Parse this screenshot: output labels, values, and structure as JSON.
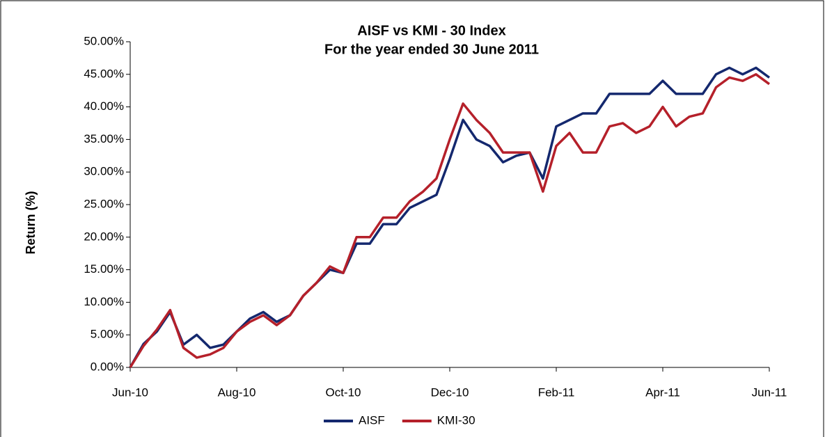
{
  "chart_data": {
    "type": "line",
    "title": "AISF vs KMI - 30 Index",
    "subtitle": "For the year ended 30 June 2011",
    "y_label": "Return (%)",
    "x": [
      0,
      0.25,
      0.5,
      0.75,
      1,
      1.25,
      1.5,
      1.75,
      2,
      2.25,
      2.5,
      2.75,
      3,
      3.25,
      3.5,
      3.75,
      4,
      4.25,
      4.5,
      4.75,
      5,
      5.25,
      5.5,
      5.75,
      6,
      6.25,
      6.5,
      6.75,
      7,
      7.25,
      7.5,
      7.75,
      8,
      8.25,
      8.5,
      8.75,
      9,
      9.25,
      9.5,
      9.75,
      10,
      10.25,
      10.5,
      10.75,
      11,
      11.25,
      11.5,
      11.75,
      12
    ],
    "series": [
      {
        "name": "AISF",
        "color": "#14286e",
        "values": [
          0,
          3.6,
          5.5,
          8.5,
          3.5,
          5,
          3,
          3.5,
          5.5,
          7.5,
          8.5,
          7,
          8,
          11,
          13,
          15,
          14.5,
          19,
          19,
          22,
          22,
          24.5,
          25.5,
          26.5,
          32,
          38,
          35,
          34,
          31.5,
          32.5,
          33,
          29,
          37,
          38,
          39,
          39,
          42,
          42,
          42,
          42,
          44,
          42,
          42,
          42,
          45,
          46,
          45,
          46,
          44.5
        ]
      },
      {
        "name": "KMI-30",
        "color": "#b5202a",
        "values": [
          0,
          3.3,
          5.8,
          8.8,
          3,
          1.5,
          2,
          3,
          5.5,
          7,
          8,
          6.5,
          8,
          11,
          13,
          15.5,
          14.5,
          20,
          20,
          23,
          23,
          25.5,
          27,
          29,
          35,
          40.5,
          38,
          36,
          33,
          33,
          33,
          27,
          34,
          36,
          33,
          33,
          37,
          37.5,
          36,
          37,
          40,
          37,
          38.5,
          39,
          43,
          44.5,
          44,
          45,
          43.5
        ]
      }
    ],
    "xlim": [
      0,
      12
    ],
    "xticks": [
      {
        "value": 0,
        "label": "Jun-10"
      },
      {
        "value": 2,
        "label": "Aug-10"
      },
      {
        "value": 4,
        "label": "Oct-10"
      },
      {
        "value": 6,
        "label": "Dec-10"
      },
      {
        "value": 8,
        "label": "Feb-11"
      },
      {
        "value": 10,
        "label": "Apr-11"
      },
      {
        "value": 12,
        "label": "Jun-11"
      }
    ],
    "ylim": [
      0,
      50
    ],
    "yticks": [
      {
        "value": 0,
        "label": "0.00%"
      },
      {
        "value": 5,
        "label": "5.00%"
      },
      {
        "value": 10,
        "label": "10.00%"
      },
      {
        "value": 15,
        "label": "15.00%"
      },
      {
        "value": 20,
        "label": "20.00%"
      },
      {
        "value": 25,
        "label": "25.00%"
      },
      {
        "value": 30,
        "label": "30.00%"
      },
      {
        "value": 35,
        "label": "35.00%"
      },
      {
        "value": 40,
        "label": "40.00%"
      },
      {
        "value": 45,
        "label": "45.00%"
      },
      {
        "value": 50,
        "label": "50.00%"
      }
    ],
    "grid": false,
    "legend": "bottom"
  }
}
